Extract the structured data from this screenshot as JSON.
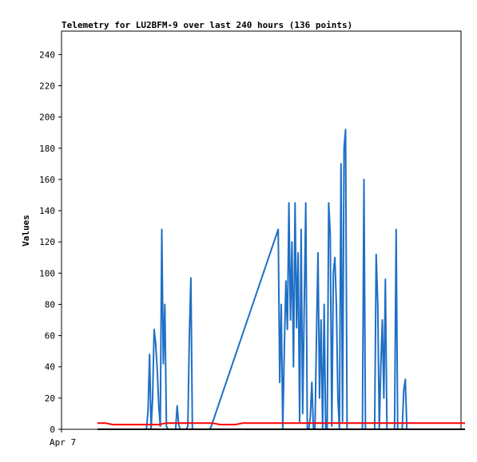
{
  "chart_data": {
    "type": "line",
    "title": "Telemetry for LU2BFM-9 over last 240 hours (136 points)",
    "xlabel": "",
    "ylabel": "Values",
    "x_tick_labels": [
      "Apr 7"
    ],
    "y_ticks": [
      0,
      20,
      40,
      60,
      80,
      100,
      120,
      140,
      160,
      180,
      200,
      220,
      240
    ],
    "ylim": [
      0,
      255
    ],
    "xlim": [
      0,
      240
    ],
    "grid": false,
    "legend": "none",
    "series": [
      {
        "color": "#1f6fc5",
        "x": [
          32,
          33,
          34,
          35,
          36,
          37,
          38,
          39,
          40,
          41,
          42,
          43,
          44,
          45,
          46,
          47,
          48,
          49,
          50,
          51,
          52,
          53,
          54,
          55,
          56,
          57,
          58,
          59,
          60,
          61,
          62,
          63,
          64,
          65,
          66,
          67,
          68,
          69,
          70,
          71,
          72,
          73,
          74,
          118,
          119,
          120,
          121,
          122,
          123,
          124,
          125,
          126,
          127,
          128,
          129,
          130,
          131,
          132,
          133,
          134,
          135,
          136,
          137,
          138,
          139,
          140,
          141,
          142,
          143,
          144,
          145,
          146,
          147,
          148,
          149,
          150,
          151,
          152,
          153,
          154,
          155,
          156,
          157,
          158,
          159,
          160,
          161,
          162,
          163,
          164,
          165,
          166,
          167,
          168,
          169,
          170,
          171,
          172,
          173,
          174,
          175,
          176,
          177,
          178,
          179,
          180,
          181,
          182,
          183,
          184,
          185,
          186,
          187,
          188,
          189,
          190,
          191,
          192,
          193,
          194,
          195,
          196,
          197,
          198,
          199,
          200,
          201,
          202,
          203,
          204,
          205,
          206,
          207,
          208,
          209,
          210
        ],
        "values": [
          0,
          12,
          48,
          0,
          20,
          64,
          55,
          38,
          15,
          2,
          128,
          42,
          80,
          2,
          0,
          0,
          0,
          0,
          0,
          0,
          15,
          3,
          0,
          0,
          0,
          0,
          0,
          2,
          60,
          97,
          0,
          0,
          0,
          0,
          0,
          0,
          0,
          0,
          0,
          0,
          0,
          0,
          1,
          128,
          30,
          80,
          0,
          50,
          95,
          64,
          145,
          70,
          120,
          40,
          145,
          65,
          113,
          5,
          128,
          10,
          80,
          145,
          0,
          0,
          8,
          30,
          0,
          0,
          60,
          113,
          20,
          70,
          0,
          80,
          0,
          0,
          145,
          125,
          2,
          100,
          110,
          80,
          20,
          0,
          170,
          5,
          180,
          192,
          0,
          0,
          0,
          0,
          0,
          0,
          0,
          0,
          0,
          0,
          0,
          160,
          0,
          0,
          0,
          0,
          0,
          0,
          0,
          112,
          80,
          0,
          40,
          70,
          20,
          96,
          0,
          0,
          0,
          0,
          0,
          0,
          128,
          0,
          0,
          0,
          0,
          25,
          32,
          0,
          0,
          0,
          0,
          0,
          0,
          0,
          0,
          0
        ]
      },
      {
        "color": "#ff0000",
        "x": [
          0,
          5,
          10,
          15,
          20,
          25,
          30,
          35,
          40,
          45,
          50,
          55,
          60,
          65,
          70,
          75,
          80,
          85,
          90,
          95,
          100,
          105,
          110,
          115,
          120,
          125,
          130,
          135,
          140,
          145,
          150,
          155,
          160,
          165,
          170,
          175,
          180,
          185,
          190,
          195,
          200,
          205,
          210,
          215,
          220,
          225,
          230,
          235,
          240
        ],
        "values": [
          4,
          4,
          3,
          3,
          3,
          3,
          3,
          3,
          3,
          4,
          4,
          4,
          4,
          4,
          4,
          4,
          3,
          3,
          3,
          4,
          4,
          4,
          4,
          4,
          4,
          4,
          4,
          4,
          4,
          4,
          4,
          4,
          4,
          4,
          4,
          4,
          4,
          4,
          4,
          4,
          4,
          4,
          4,
          4,
          4,
          4,
          4,
          4,
          4
        ]
      },
      {
        "color": "#000000",
        "x": [
          0,
          240
        ],
        "values": [
          0,
          0
        ]
      }
    ]
  }
}
